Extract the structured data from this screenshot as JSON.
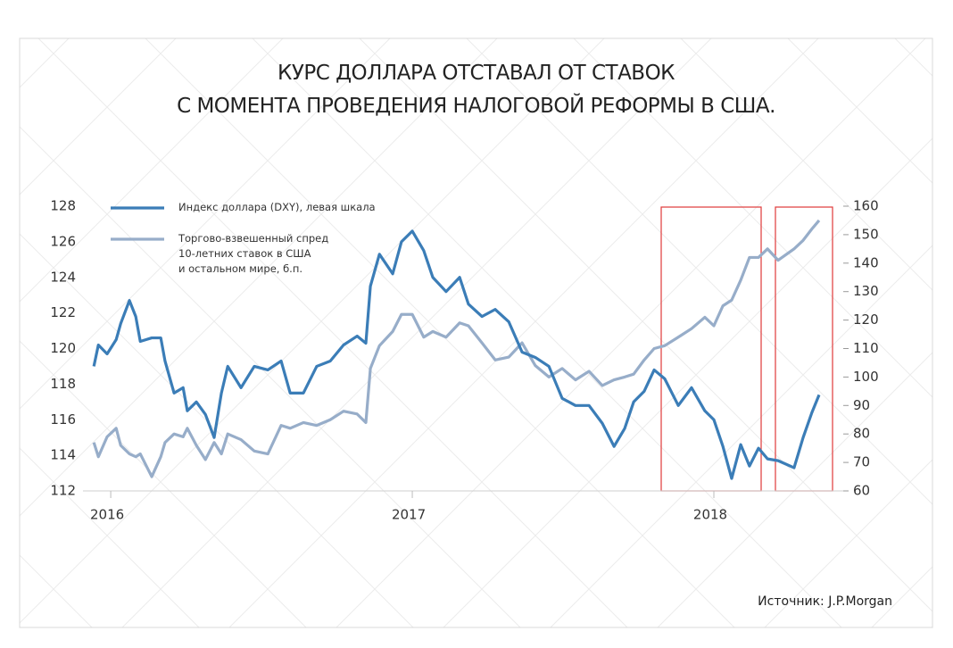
{
  "chart_data": {
    "type": "line",
    "title": "КУРС ДОЛЛАРА ОТСТАВАЛ ОТ СТАВОК\nС МОМЕНТА ПРОВЕДЕНИЯ НАЛОГОВОЙ РЕФОРМЫ В США.",
    "source": "Источник: J.P.Morgan",
    "x": [
      2015.944,
      2015.959,
      2015.988,
      2016.018,
      2016.033,
      2016.062,
      2016.083,
      2016.098,
      2016.136,
      2016.166,
      2016.18,
      2016.21,
      2016.24,
      2016.254,
      2016.284,
      2016.314,
      2016.343,
      2016.367,
      2016.388,
      2016.432,
      2016.476,
      2016.521,
      2016.565,
      2016.595,
      2016.639,
      2016.683,
      2016.728,
      2016.772,
      2016.817,
      2016.846,
      2016.861,
      2016.891,
      2016.935,
      2016.964,
      2017.0,
      2017.038,
      2017.068,
      2017.112,
      2017.157,
      2017.186,
      2017.231,
      2017.275,
      2017.32,
      2017.364,
      2017.408,
      2017.453,
      2017.497,
      2017.541,
      2017.586,
      2017.63,
      2017.669,
      2017.704,
      2017.734,
      2017.769,
      2017.802,
      2017.837,
      2017.882,
      2017.926,
      2017.97,
      2018.0,
      2018.03,
      2018.059,
      2018.089,
      2018.118,
      2018.148,
      2018.178,
      2018.213,
      2018.266,
      2018.296,
      2018.325,
      2018.349
    ],
    "xlim": [
      2015.908,
      2018.429
    ],
    "xticks": [
      2016,
      2017,
      2018
    ],
    "ylim": [
      112,
      128
    ],
    "yticks": [
      112,
      114,
      116,
      118,
      120,
      122,
      124,
      126,
      128
    ],
    "y2lim": [
      60,
      160
    ],
    "y2ticks": [
      60,
      70,
      80,
      90,
      100,
      110,
      120,
      130,
      140,
      150,
      160
    ],
    "grid": false,
    "legend": "top-left",
    "series": [
      {
        "name": "Индекс доллара (DXY), левая шкала",
        "color": "#3b7db7",
        "values": [
          119.0,
          120.2,
          119.7,
          120.5,
          121.4,
          122.7,
          121.8,
          120.4,
          120.6,
          120.6,
          119.3,
          117.5,
          117.8,
          116.5,
          117.0,
          116.3,
          115.0,
          117.5,
          119.0,
          117.8,
          119.0,
          118.8,
          119.3,
          117.5,
          117.5,
          119.0,
          119.3,
          120.2,
          120.7,
          120.3,
          123.5,
          125.3,
          124.2,
          126.0,
          126.6,
          125.5,
          124.0,
          123.2,
          124.0,
          122.5,
          121.8,
          122.2,
          121.5,
          119.8,
          119.5,
          119.0,
          117.2,
          116.8,
          116.8,
          115.8,
          114.5,
          115.5,
          117.0,
          117.6,
          118.8,
          118.3,
          116.8,
          117.8,
          116.5,
          116.0,
          114.5,
          112.7,
          114.6,
          113.4,
          114.4,
          113.8,
          113.7,
          113.3,
          115.0,
          116.4,
          117.4
        ]
      },
      {
        "name": "Торгово-взвешенный спред\n10-летних ставок в США\nи остальном мире, б.п.",
        "color": "#97adc9",
        "axis": "y2",
        "values": [
          77,
          72,
          79,
          82,
          76,
          73,
          72,
          73,
          65,
          72,
          77,
          80,
          79,
          82,
          76,
          71,
          77,
          73,
          80,
          78,
          74,
          73,
          83,
          82,
          84,
          83,
          85,
          88,
          87,
          84,
          103,
          111,
          116,
          122,
          122,
          114,
          116,
          114,
          119,
          118,
          112,
          106,
          107,
          112,
          104,
          100,
          103,
          99,
          102,
          97,
          99,
          100,
          101,
          106,
          110,
          111,
          114,
          117,
          121,
          118,
          125,
          127,
          134,
          142,
          142,
          145,
          141,
          145,
          148,
          152,
          155
        ]
      }
    ]
  }
}
